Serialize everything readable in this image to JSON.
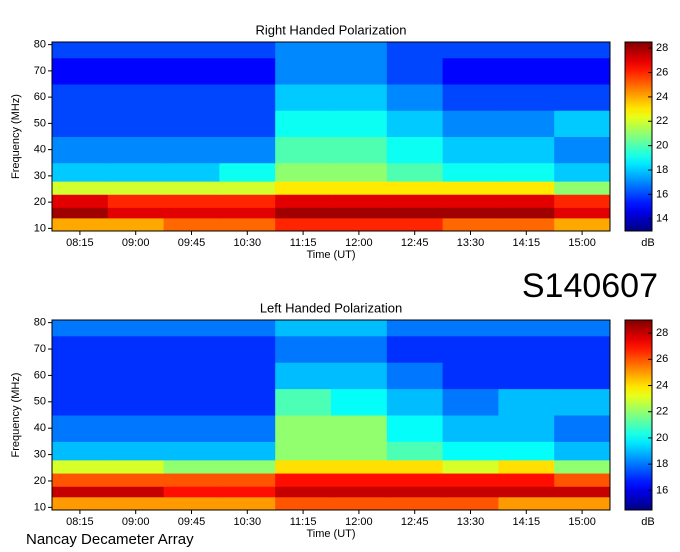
{
  "page_label": "S140607",
  "footer": "Nancay Decameter Array",
  "chart_data": [
    {
      "type": "heatmap",
      "title": "Right Handed Polarization",
      "x_label": "Time (UT)",
      "y_label": "Frequency (MHz)",
      "categories": [
        "08:15",
        "09:00",
        "09:45",
        "10:30",
        "11:15",
        "12:00",
        "12:45",
        "13:30",
        "14:15",
        "15:00"
      ],
      "y_bins": [
        9,
        14,
        18,
        23,
        28,
        35,
        45,
        55,
        65,
        75,
        81
      ],
      "ylim": [
        9,
        81
      ],
      "yticks": [
        10,
        20,
        30,
        40,
        50,
        60,
        70,
        80
      ],
      "values": [
        [
          24,
          24,
          25,
          25,
          26,
          26,
          26,
          25,
          25,
          24
        ],
        [
          28,
          27,
          27,
          27,
          28,
          28,
          28,
          28,
          28,
          27
        ],
        [
          27,
          26,
          26,
          26,
          27,
          27,
          27,
          27,
          27,
          26
        ],
        [
          22,
          22,
          22,
          22,
          23,
          23,
          23,
          23,
          23,
          21
        ],
        [
          18,
          18,
          18,
          19,
          21,
          21,
          20,
          19,
          19,
          18
        ],
        [
          17,
          17,
          17,
          17,
          20,
          20,
          19,
          18,
          18,
          17
        ],
        [
          16,
          16,
          16,
          16,
          19,
          19,
          18,
          17,
          17,
          18
        ],
        [
          16,
          16,
          16,
          16,
          18,
          18,
          17,
          16,
          16,
          16
        ],
        [
          15,
          15,
          15,
          15,
          17,
          17,
          16,
          15,
          15,
          15
        ],
        [
          16,
          16,
          16,
          16,
          17,
          17,
          16,
          16,
          16,
          16
        ]
      ],
      "colormap": "jet",
      "clim": [
        13,
        28.5
      ],
      "cticks": [
        14,
        16,
        18,
        20,
        22,
        24,
        26,
        28
      ],
      "colorbar_label": "dB"
    },
    {
      "type": "heatmap",
      "title": "Left Handed Polarization",
      "x_label": "Time (UT)",
      "y_label": "Frequency (MHz)",
      "categories": [
        "08:15",
        "09:00",
        "09:45",
        "10:30",
        "11:15",
        "12:00",
        "12:45",
        "13:30",
        "14:15",
        "15:00"
      ],
      "y_bins": [
        9,
        14,
        18,
        23,
        28,
        35,
        45,
        55,
        65,
        75,
        81
      ],
      "ylim": [
        9,
        81
      ],
      "yticks": [
        10,
        20,
        30,
        40,
        50,
        60,
        70,
        80
      ],
      "values": [
        [
          25,
          25,
          25,
          25,
          26,
          26,
          26,
          26,
          25,
          25
        ],
        [
          28,
          28,
          27,
          27,
          28,
          28,
          28,
          28,
          28,
          28
        ],
        [
          26,
          26,
          26,
          26,
          27,
          27,
          27,
          27,
          27,
          26
        ],
        [
          23,
          23,
          22,
          22,
          24,
          24,
          24,
          23,
          24,
          22
        ],
        [
          19,
          19,
          19,
          19,
          22,
          22,
          21,
          20,
          20,
          19
        ],
        [
          18,
          18,
          18,
          18,
          22,
          22,
          20,
          19,
          19,
          18
        ],
        [
          17,
          17,
          17,
          17,
          21,
          20,
          19,
          18,
          19,
          19
        ],
        [
          17,
          17,
          17,
          17,
          19,
          19,
          18,
          17,
          17,
          17
        ],
        [
          17,
          17,
          17,
          17,
          18,
          18,
          17,
          17,
          17,
          17
        ],
        [
          18,
          18,
          18,
          18,
          19,
          19,
          18,
          18,
          18,
          18
        ]
      ],
      "colormap": "jet",
      "clim": [
        14.5,
        29
      ],
      "cticks": [
        16,
        18,
        20,
        22,
        24,
        26,
        28
      ],
      "colorbar_label": "dB"
    }
  ]
}
